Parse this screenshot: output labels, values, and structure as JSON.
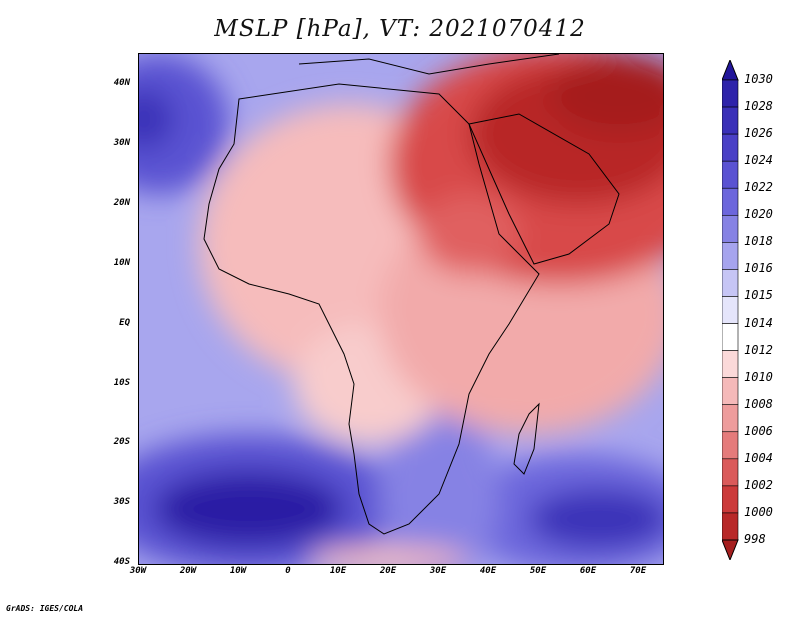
{
  "title": "MSLP [hPa], VT: 2021070412",
  "credit": "GrADS: IGES/COLA",
  "lat_labels": [
    "40N",
    "30N",
    "20N",
    "10N",
    "EQ",
    "10S",
    "20S",
    "30S",
    "40S"
  ],
  "lon_labels": [
    "30W",
    "20W",
    "10W",
    "0",
    "10E",
    "20E",
    "30E",
    "40E",
    "50E",
    "60E",
    "70E"
  ],
  "colorbar": {
    "levels": [
      "1030",
      "1028",
      "1026",
      "1024",
      "1022",
      "1020",
      "1018",
      "1016",
      "1015",
      "1014",
      "1012",
      "1010",
      "1008",
      "1006",
      "1004",
      "1002",
      "1000",
      "998"
    ],
    "colors": [
      "#22169a",
      "#2e23aa",
      "#3a30b8",
      "#4a40c6",
      "#5a52d2",
      "#6c66dc",
      "#8682e4",
      "#a6a4ee",
      "#c6c5f5",
      "#e5e5fb",
      "#ffffff",
      "#fbd9d9",
      "#f5b9b9",
      "#ee9c9c",
      "#e57b7b",
      "#da5a5a",
      "#cc3a3a",
      "#b82828",
      "#a51f1f"
    ]
  },
  "chart_data": {
    "type": "heatmap",
    "title": "MSLP [hPa], VT: 2021070412",
    "variable": "Mean sea level pressure",
    "units": "hPa",
    "valid_time": "2021070412",
    "lon_range": [
      -30,
      75
    ],
    "lat_range": [
      -40,
      45
    ],
    "color_scale_range": [
      998,
      1030
    ]
  }
}
